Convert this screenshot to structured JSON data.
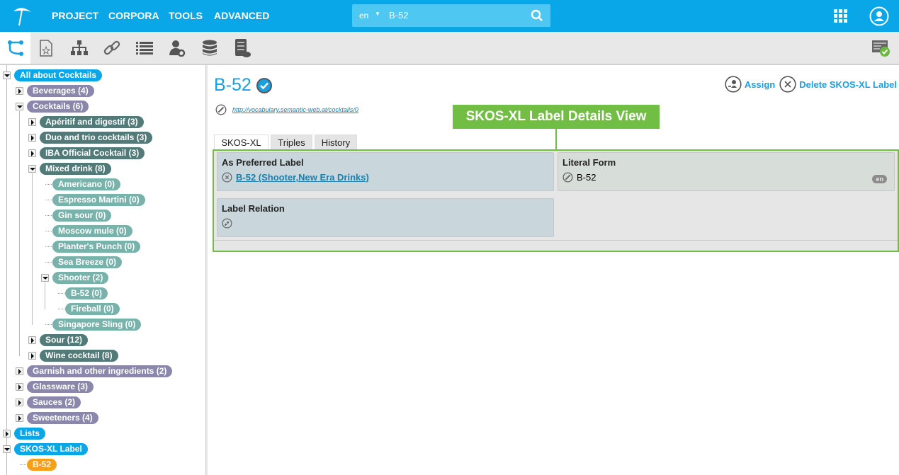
{
  "topbar": {
    "menu": [
      "PROJECT",
      "CORPORA",
      "TOOLS",
      "ADVANCED"
    ],
    "search": {
      "language": "en",
      "value": "B-52"
    },
    "icons": [
      "umbrella-logo-icon",
      "search-icon",
      "apps-grid-icon",
      "user-icon"
    ]
  },
  "toolbar": {
    "tools": [
      "hierarchy-icon",
      "document-star-icon",
      "org-chart-icon",
      "link-icon",
      "list-icon",
      "user-settings-icon",
      "database-icon",
      "server-cloud-icon"
    ],
    "right_icon": "validated-list-icon"
  },
  "palette": {
    "root": "#0aa7e8",
    "l1": "#8a86ac",
    "l2": "#517a78",
    "l3": "#78b2ab",
    "selected": "#f6a01a",
    "accent": "#1a9fe0",
    "highlight": "#72bd44"
  },
  "tree": [
    {
      "label": "All about Cocktails",
      "level": 0,
      "state": "open",
      "kind": "root"
    },
    {
      "label": "Beverages (4)",
      "level": 1,
      "state": "closed",
      "kind": "l1"
    },
    {
      "label": "Cocktails (6)",
      "level": 1,
      "state": "open",
      "kind": "l1"
    },
    {
      "label": "Apéritif and digestif (3)",
      "level": 2,
      "state": "closed",
      "kind": "l2"
    },
    {
      "label": "Duo and trio cocktails (3)",
      "level": 2,
      "state": "closed",
      "kind": "l2"
    },
    {
      "label": "IBA Official Cocktail (3)",
      "level": 2,
      "state": "closed",
      "kind": "l2"
    },
    {
      "label": "Mixed drink (8)",
      "level": 2,
      "state": "open",
      "kind": "l2"
    },
    {
      "label": "Americano (0)",
      "level": 3,
      "state": "leaf",
      "kind": "l3"
    },
    {
      "label": "Espresso Martini (0)",
      "level": 3,
      "state": "leaf",
      "kind": "l3"
    },
    {
      "label": "Gin sour (0)",
      "level": 3,
      "state": "leaf",
      "kind": "l3"
    },
    {
      "label": "Moscow mule (0)",
      "level": 3,
      "state": "leaf",
      "kind": "l3"
    },
    {
      "label": "Planter's Punch (0)",
      "level": 3,
      "state": "leaf",
      "kind": "l3"
    },
    {
      "label": "Sea Breeze (0)",
      "level": 3,
      "state": "leaf",
      "kind": "l3"
    },
    {
      "label": "Shooter (2)",
      "level": 3,
      "state": "open",
      "kind": "l3"
    },
    {
      "label": "B-52 (0)",
      "level": 4,
      "state": "leaf",
      "kind": "l3"
    },
    {
      "label": "Fireball (0)",
      "level": 4,
      "state": "leaf",
      "kind": "l3"
    },
    {
      "label": "Singapore Sling (0)",
      "level": 3,
      "state": "leaf",
      "kind": "l3"
    },
    {
      "label": "Sour (12)",
      "level": 2,
      "state": "closed",
      "kind": "l2"
    },
    {
      "label": "Wine cocktail (8)",
      "level": 2,
      "state": "closed",
      "kind": "l2"
    },
    {
      "label": "Garnish and other ingredients (2)",
      "level": 1,
      "state": "closed",
      "kind": "l1"
    },
    {
      "label": "Glassware (3)",
      "level": 1,
      "state": "closed",
      "kind": "l1"
    },
    {
      "label": "Sauces (2)",
      "level": 1,
      "state": "closed",
      "kind": "l1"
    },
    {
      "label": "Sweeteners (4)",
      "level": 1,
      "state": "closed",
      "kind": "l1"
    },
    {
      "label": "Lists",
      "level": 0,
      "state": "closed",
      "kind": "root"
    },
    {
      "label": "SKOS-XL Label",
      "level": 0,
      "state": "open",
      "kind": "root"
    },
    {
      "label": "B-52",
      "level": 1,
      "state": "leaf",
      "kind": "selected"
    }
  ],
  "detail": {
    "title": "B-52",
    "uri": "http://vocabulary.semantic-web.at/cocktails/0",
    "actions": {
      "assign": "Assign",
      "delete": "Delete SKOS-XL Label"
    },
    "callout": "SKOS-XL Label Details View",
    "tabs": [
      "SKOS-XL",
      "Triples",
      "History"
    ],
    "active_tab": "SKOS-XL",
    "cards": {
      "preferred": {
        "title": "As Preferred Label",
        "value": "B-52 (Shooter,New Era Drinks)"
      },
      "literal": {
        "title": "Literal Form",
        "value": "B-52",
        "lang": "en"
      },
      "relation": {
        "title": "Label Relation"
      }
    }
  }
}
